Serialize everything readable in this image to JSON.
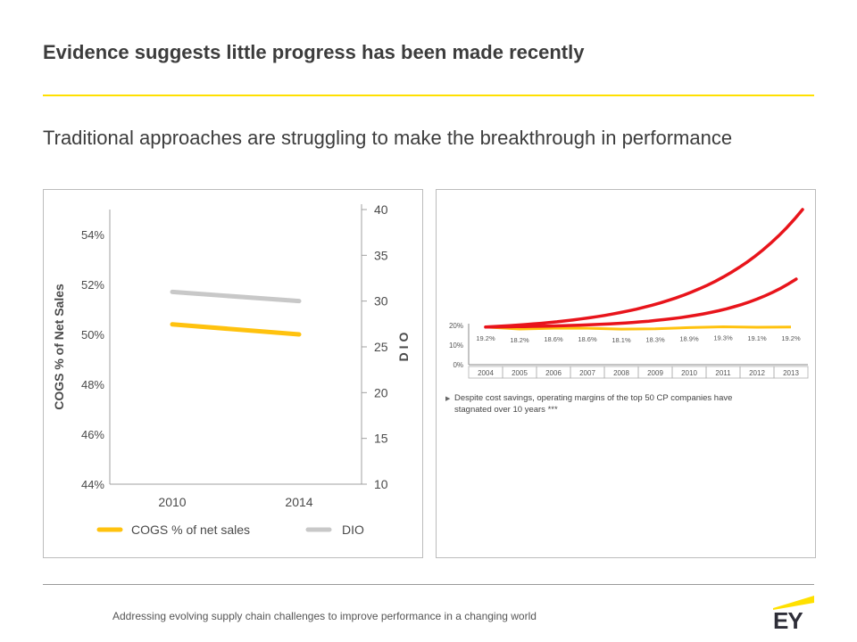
{
  "page": {
    "title": "Evidence suggests little progress has been made recently",
    "subtitle": "Traditional approaches are struggling to make the breakthrough in performance",
    "footer": "Addressing evolving supply chain challenges to improve performance in a changing world",
    "logo": "EY"
  },
  "colors": {
    "accent_yellow": "#ffe000",
    "cogs_line": "#ffc20e",
    "dio_line": "#c8c8c8",
    "red": "#e8141b",
    "text": "#3c3c3c"
  },
  "chart_data": [
    {
      "type": "line",
      "x": [
        "2010",
        "2014"
      ],
      "series": [
        {
          "name": "COGS % of net sales",
          "axis": "left",
          "values": [
            50.4,
            50.0
          ],
          "color": "#ffc20e"
        },
        {
          "name": "DIO",
          "axis": "right",
          "values": [
            31.0,
            30.0
          ],
          "color": "#c8c8c8"
        }
      ],
      "ylabel": "COGS % of Net Sales",
      "ylabel_right": "D I O",
      "ylim": [
        44,
        55
      ],
      "ylim_right": [
        10,
        40
      ],
      "yticks": [
        "44%",
        "46%",
        "48%",
        "50%",
        "52%",
        "54%"
      ],
      "yticks_right": [
        "10",
        "15",
        "20",
        "25",
        "30",
        "35",
        "40"
      ],
      "legend": [
        "COGS % of net sales",
        "DIO"
      ],
      "legend_position": "bottom"
    },
    {
      "type": "line",
      "categories": [
        "2004",
        "2005",
        "2006",
        "2007",
        "2008",
        "2009",
        "2010",
        "2011",
        "2012",
        "2013"
      ],
      "series": [
        {
          "values": [
            19.2,
            18.2,
            18.6,
            18.6,
            18.1,
            18.3,
            18.9,
            19.3,
            19.1,
            19.2
          ],
          "color": "#ffc20e"
        }
      ],
      "data_labels": [
        "19.2%",
        "18.2%",
        "18.6%",
        "18.6%",
        "18.1%",
        "18.3%",
        "18.9%",
        "19.3%",
        "19.1%",
        "19.2%"
      ],
      "yticks": [
        "0%",
        "10%",
        "20%"
      ],
      "ylim": [
        0,
        20
      ],
      "curves": [
        {
          "role": "upper-red-curve",
          "color": "#e8141b",
          "shape": "exponential"
        },
        {
          "role": "lower-red-curve",
          "color": "#e8141b",
          "shape": "exponential"
        }
      ],
      "note": "Despite cost savings, operating margins of the top 50 CP companies have stagnated over 10 years ***"
    }
  ]
}
